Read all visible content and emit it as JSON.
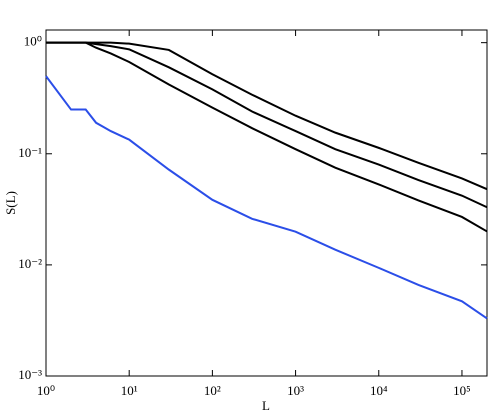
{
  "chart_data": {
    "type": "line",
    "x_label": "L",
    "y_label": "S(L)",
    "x": [
      1,
      2,
      3,
      4,
      6,
      10,
      30,
      100,
      300,
      1000,
      3000,
      10000,
      30000,
      100000,
      200000
    ],
    "series": [
      {
        "color": "#000000",
        "values": [
          1,
          1,
          1,
          1,
          1,
          0.98,
          0.86,
          0.52,
          0.34,
          0.22,
          0.155,
          0.113,
          0.083,
          0.06,
          0.048
        ]
      },
      {
        "color": "#000000",
        "values": [
          1,
          1,
          1,
          0.97,
          0.93,
          0.87,
          0.6,
          0.38,
          0.24,
          0.16,
          0.11,
          0.08,
          0.058,
          0.042,
          0.033
        ]
      },
      {
        "color": "#000000",
        "values": [
          1,
          1,
          1,
          0.9,
          0.8,
          0.67,
          0.42,
          0.26,
          0.17,
          0.11,
          0.075,
          0.053,
          0.038,
          0.027,
          0.02
        ]
      },
      {
        "color": "#2b4ee8",
        "values": [
          0.5,
          0.25,
          0.25,
          0.19,
          0.16,
          0.134,
          0.072,
          0.0385,
          0.026,
          0.0199,
          0.0137,
          0.0094,
          0.0066,
          0.0047,
          0.0033
        ]
      }
    ],
    "x_log": true,
    "y_log": true,
    "xlim": [
      1,
      200000
    ],
    "ylim": [
      0.001,
      1.3
    ],
    "xticks": [
      {
        "value": 1,
        "label": "10⁰"
      },
      {
        "value": 10,
        "label": "10¹"
      },
      {
        "value": 100,
        "label": "10²"
      },
      {
        "value": 1000,
        "label": "10³"
      },
      {
        "value": 10000,
        "label": "10⁴"
      },
      {
        "value": 100000,
        "label": "10⁵"
      }
    ],
    "yticks": [
      {
        "value": 0.001,
        "label": "10⁻³"
      },
      {
        "value": 0.01,
        "label": "10⁻²"
      },
      {
        "value": 0.1,
        "label": "10⁻¹"
      },
      {
        "value": 1,
        "label": "10⁰"
      }
    ]
  }
}
